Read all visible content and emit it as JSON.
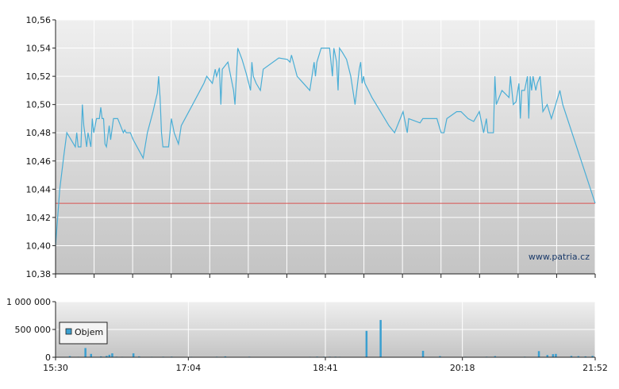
{
  "watermark": "www.patria.cz",
  "legend_label": "Objem",
  "colors": {
    "price_line": "#4aaed6",
    "reference_line": "#d9534f",
    "volume_bars": "#3a9fd0",
    "grid": "#ffffff",
    "axis": "#222222"
  },
  "chart_data": [
    {
      "type": "line",
      "ylim": [
        10.38,
        10.56
      ],
      "y_ticks": [
        "10,56",
        "10,54",
        "10,52",
        "10,50",
        "10,48",
        "10,46",
        "10,44",
        "10,42",
        "10,40",
        "10,38"
      ],
      "y_tick_values": [
        10.56,
        10.54,
        10.52,
        10.5,
        10.48,
        10.46,
        10.44,
        10.42,
        10.4,
        10.38
      ],
      "x_ticks": [
        "15:30",
        "17:04",
        "18:41",
        "20:18",
        "21:52"
      ],
      "reference_value": 10.43,
      "series": [
        {
          "points": [
            [
              "15:30",
              10.4
            ],
            [
              "15:33",
              10.44
            ],
            [
              "15:36",
              10.465
            ],
            [
              "15:38",
              10.48
            ],
            [
              "15:41",
              10.475
            ],
            [
              "15:44",
              10.47
            ],
            [
              "15:45",
              10.48
            ],
            [
              "15:46",
              10.47
            ],
            [
              "15:48",
              10.47
            ],
            [
              "15:49",
              10.5
            ],
            [
              "15:50",
              10.485
            ],
            [
              "15:52",
              10.47
            ],
            [
              "15:53",
              10.48
            ],
            [
              "15:55",
              10.47
            ],
            [
              "15:56",
              10.49
            ],
            [
              "15:57",
              10.48
            ],
            [
              "15:59",
              10.49
            ],
            [
              "16:01",
              10.49
            ],
            [
              "16:02",
              10.498
            ],
            [
              "16:03",
              10.49
            ],
            [
              "16:04",
              10.49
            ],
            [
              "16:05",
              10.472
            ],
            [
              "16:06",
              10.47
            ],
            [
              "16:08",
              10.485
            ],
            [
              "16:09",
              10.475
            ],
            [
              "16:11",
              10.49
            ],
            [
              "16:14",
              10.49
            ],
            [
              "16:16",
              10.485
            ],
            [
              "16:18",
              10.48
            ],
            [
              "16:19",
              10.482
            ],
            [
              "16:20",
              10.48
            ],
            [
              "16:23",
              10.48
            ],
            [
              "16:25",
              10.475
            ],
            [
              "16:32",
              10.462
            ],
            [
              "16:35",
              10.48
            ],
            [
              "16:39",
              10.495
            ],
            [
              "16:42",
              10.508
            ],
            [
              "16:43",
              10.52
            ],
            [
              "16:44",
              10.505
            ],
            [
              "16:45",
              10.48
            ],
            [
              "16:46",
              10.47
            ],
            [
              "16:48",
              10.47
            ],
            [
              "16:50",
              10.47
            ],
            [
              "16:52",
              10.49
            ],
            [
              "16:54",
              10.48
            ],
            [
              "16:57",
              10.472
            ],
            [
              "16:59",
              10.485
            ],
            [
              "17:07",
              10.5
            ],
            [
              "17:15",
              10.515
            ],
            [
              "17:17",
              10.52
            ],
            [
              "17:21",
              10.515
            ],
            [
              "17:23",
              10.525
            ],
            [
              "17:24",
              10.52
            ],
            [
              "17:26",
              10.526
            ],
            [
              "17:27",
              10.5
            ],
            [
              "17:28",
              10.525
            ],
            [
              "17:32",
              10.53
            ],
            [
              "17:36",
              10.51
            ],
            [
              "17:37",
              10.5
            ],
            [
              "17:39",
              10.54
            ],
            [
              "17:42",
              10.532
            ],
            [
              "17:45",
              10.522
            ],
            [
              "17:48",
              10.51
            ],
            [
              "17:49",
              10.53
            ],
            [
              "17:50",
              10.52
            ],
            [
              "17:52",
              10.515
            ],
            [
              "17:55",
              10.51
            ],
            [
              "17:57",
              10.525
            ],
            [
              "18:08",
              10.533
            ],
            [
              "18:14",
              10.532
            ],
            [
              "18:16",
              10.53
            ],
            [
              "18:17",
              10.535
            ],
            [
              "18:21",
              10.52
            ],
            [
              "18:30",
              10.51
            ],
            [
              "18:33",
              10.53
            ],
            [
              "18:34",
              10.52
            ],
            [
              "18:35",
              10.53
            ],
            [
              "18:38",
              10.54
            ],
            [
              "18:41",
              10.54
            ],
            [
              "18:44",
              10.54
            ],
            [
              "18:46",
              10.52
            ],
            [
              "18:47",
              10.54
            ],
            [
              "18:49",
              10.53
            ],
            [
              "18:50",
              10.51
            ],
            [
              "18:51",
              10.54
            ],
            [
              "18:53",
              10.537
            ],
            [
              "18:56",
              10.532
            ],
            [
              "18:59",
              10.52
            ],
            [
              "19:02",
              10.5
            ],
            [
              "19:05",
              10.525
            ],
            [
              "19:06",
              10.53
            ],
            [
              "19:07",
              10.515
            ],
            [
              "19:08",
              10.52
            ],
            [
              "19:09",
              10.515
            ],
            [
              "19:14",
              10.505
            ],
            [
              "19:17",
              10.5
            ],
            [
              "19:26",
              10.485
            ],
            [
              "19:30",
              10.48
            ],
            [
              "19:36",
              10.495
            ],
            [
              "19:39",
              10.48
            ],
            [
              "19:40",
              10.49
            ],
            [
              "19:48",
              10.487
            ],
            [
              "19:50",
              10.49
            ],
            [
              "20:00",
              10.49
            ],
            [
              "20:02",
              10.483
            ],
            [
              "20:03",
              10.48
            ],
            [
              "20:05",
              10.48
            ],
            [
              "20:07",
              10.49
            ],
            [
              "20:14",
              10.495
            ],
            [
              "20:17",
              10.495
            ],
            [
              "20:22",
              10.49
            ],
            [
              "20:26",
              10.488
            ],
            [
              "20:30",
              10.495
            ],
            [
              "20:33",
              10.48
            ],
            [
              "20:35",
              10.49
            ],
            [
              "20:36",
              10.48
            ],
            [
              "20:40",
              10.48
            ],
            [
              "20:41",
              10.52
            ],
            [
              "20:42",
              10.5
            ],
            [
              "20:46",
              10.51
            ],
            [
              "20:51",
              10.505
            ],
            [
              "20:52",
              10.52
            ],
            [
              "20:54",
              10.5
            ],
            [
              "20:56",
              10.502
            ],
            [
              "20:58",
              10.515
            ],
            [
              "20:59",
              10.49
            ],
            [
              "21:00",
              10.51
            ],
            [
              "21:02",
              10.51
            ],
            [
              "21:04",
              10.52
            ],
            [
              "21:05",
              10.49
            ],
            [
              "21:06",
              10.52
            ],
            [
              "21:07",
              10.51
            ],
            [
              "21:08",
              10.52
            ],
            [
              "21:10",
              10.51
            ],
            [
              "21:11",
              10.515
            ],
            [
              "21:13",
              10.52
            ],
            [
              "21:15",
              10.495
            ],
            [
              "21:18",
              10.5
            ],
            [
              "21:21",
              10.49
            ],
            [
              "21:24",
              10.5
            ],
            [
              "21:27",
              10.51
            ],
            [
              "21:29",
              10.5
            ],
            [
              "21:52",
              10.43
            ]
          ]
        }
      ]
    },
    {
      "type": "bar",
      "ylim": [
        0,
        1000000
      ],
      "y_ticks": [
        "1 000 000",
        "500 000",
        "0"
      ],
      "y_tick_values": [
        1000000,
        500000,
        0
      ],
      "x_ticks": [
        "15:30",
        "17:04",
        "18:41",
        "20:18",
        "21:52"
      ],
      "series": [
        {
          "name": "Objem",
          "bars": [
            [
              "15:32",
              5000
            ],
            [
              "15:40",
              20000
            ],
            [
              "15:46",
              8000
            ],
            [
              "15:51",
              165000
            ],
            [
              "15:55",
              60000
            ],
            [
              "16:02",
              15000
            ],
            [
              "16:06",
              25000
            ],
            [
              "16:08",
              45000
            ],
            [
              "16:10",
              70000
            ],
            [
              "16:13",
              10000
            ],
            [
              "16:17",
              8000
            ],
            [
              "16:25",
              70000
            ],
            [
              "16:29",
              15000
            ],
            [
              "16:38",
              8000
            ],
            [
              "16:46",
              10000
            ],
            [
              "16:52",
              12000
            ],
            [
              "17:06",
              8000
            ],
            [
              "17:16",
              5000
            ],
            [
              "17:24",
              10000
            ],
            [
              "17:30",
              15000
            ],
            [
              "17:47",
              10000
            ],
            [
              "18:00",
              6000
            ],
            [
              "18:14",
              5000
            ],
            [
              "18:30",
              8000
            ],
            [
              "18:35",
              12000
            ],
            [
              "18:40",
              10000
            ],
            [
              "18:44",
              10000
            ],
            [
              "18:48",
              10000
            ],
            [
              "18:51",
              8000
            ],
            [
              "19:10",
              475000
            ],
            [
              "19:20",
              670000
            ],
            [
              "19:50",
              115000
            ],
            [
              "20:02",
              20000
            ],
            [
              "20:10",
              6000
            ],
            [
              "20:20",
              8000
            ],
            [
              "20:35",
              10000
            ],
            [
              "20:41",
              20000
            ],
            [
              "21:02",
              10000
            ],
            [
              "21:12",
              110000
            ],
            [
              "21:18",
              40000
            ],
            [
              "21:22",
              55000
            ],
            [
              "21:24",
              60000
            ],
            [
              "21:35",
              25000
            ],
            [
              "21:40",
              20000
            ],
            [
              "21:45",
              15000
            ],
            [
              "21:50",
              25000
            ]
          ]
        }
      ]
    }
  ]
}
